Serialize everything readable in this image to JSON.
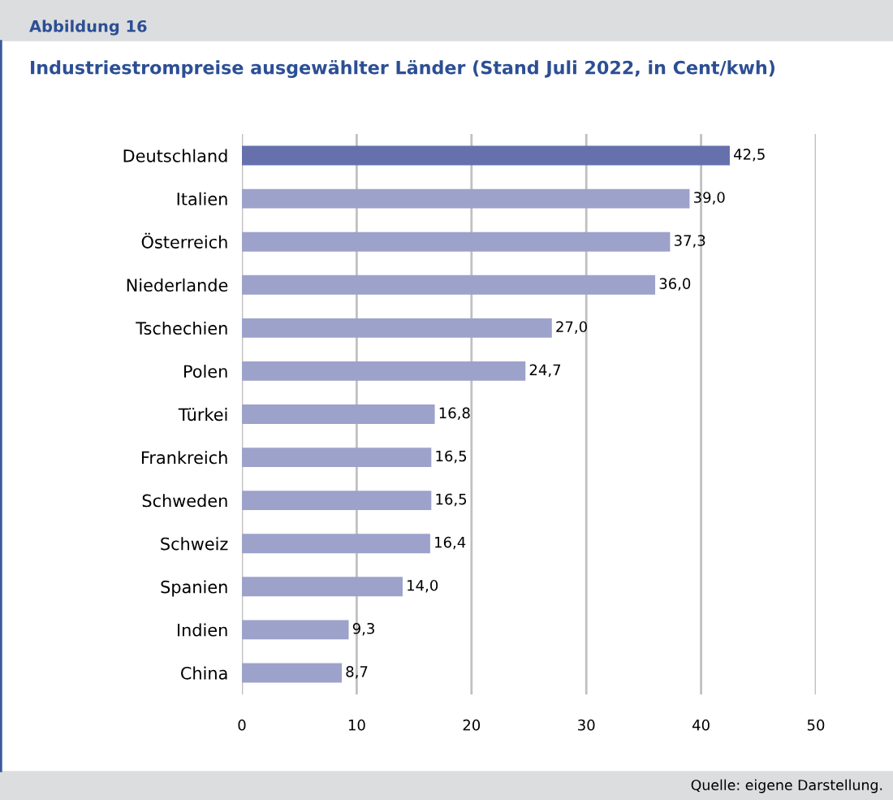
{
  "chart_data": {
    "type": "bar",
    "orientation": "horizontal",
    "title": "Industriestrompreise ausgewählter Länder (Stand Juli 2022, in Cent/kwh)",
    "annotations": [
      "Abbildung 16",
      "Quelle: eigene Darstellung."
    ],
    "categories": [
      "Deutschland",
      "Italien",
      "Österreich",
      "Niederlande",
      "Tschechien",
      "Polen",
      "Türkei",
      "Frankreich",
      "Schweden",
      "Schweiz",
      "Spanien",
      "Indien",
      "China"
    ],
    "values": [
      42.5,
      39.0,
      37.3,
      36.0,
      27.0,
      24.7,
      16.8,
      16.5,
      16.5,
      16.4,
      14.0,
      9.3,
      8.7
    ],
    "value_labels": [
      "42,5",
      "39,0",
      "37,3",
      "36,0",
      "27,0",
      "24,7",
      "16,8",
      "16,5",
      "16,5",
      "16,4",
      "14,0",
      "9,3",
      "8,7"
    ],
    "colors": [
      "#6570ad",
      "#9da2cb",
      "#9da2cb",
      "#9da2cb",
      "#9da2cb",
      "#9da2cb",
      "#9da2cb",
      "#9da2cb",
      "#9da2cb",
      "#9da2cb",
      "#9da2cb",
      "#9da2cb",
      "#9da2cb"
    ],
    "xlim": [
      0,
      50
    ],
    "xticks": [
      0,
      10,
      20,
      30,
      40,
      50
    ],
    "grid": "x"
  }
}
